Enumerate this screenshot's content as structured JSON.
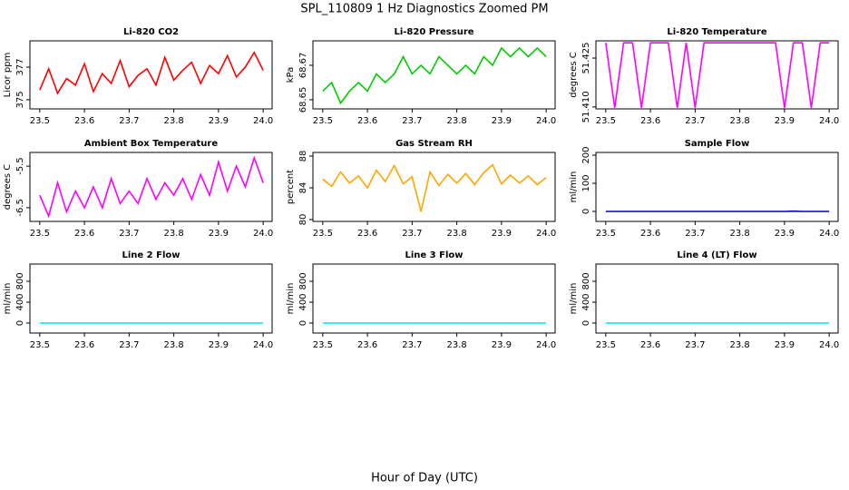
{
  "title": "SPL_110809  1 Hz Diagnostics Zoomed PM",
  "xlabel": "Hour of Day (UTC)",
  "chart_data": [
    {
      "type": "line",
      "title": "Li-820 CO2",
      "ylabel": "Licor ppm",
      "color": "#ff0000",
      "x": [
        23.5,
        23.52,
        23.54,
        23.56,
        23.58,
        23.6,
        23.62,
        23.64,
        23.66,
        23.68,
        23.7,
        23.72,
        23.74,
        23.76,
        23.78,
        23.8,
        23.82,
        23.84,
        23.86,
        23.88,
        23.9,
        23.92,
        23.94,
        23.96,
        23.98,
        24.0
      ],
      "values": [
        375.6,
        376.9,
        375.4,
        376.3,
        375.9,
        377.2,
        375.5,
        376.6,
        376.0,
        377.4,
        375.8,
        376.5,
        376.9,
        375.9,
        377.6,
        376.2,
        376.8,
        377.3,
        376.0,
        377.1,
        376.6,
        377.7,
        376.4,
        377.0,
        377.9,
        376.8
      ],
      "xlim": [
        23.478,
        24.02
      ],
      "xticks": [
        23.5,
        23.6,
        23.7,
        23.8,
        23.9,
        {
          "value": 24,
          "label": "24.0"
        }
      ],
      "ylim": [
        374.44,
        378.61
      ],
      "yticks": [
        375,
        377
      ]
    },
    {
      "type": "line",
      "title": "Li-820 Pressure",
      "ylabel": "kPa",
      "color": "#00cc00",
      "x": [
        23.5,
        23.52,
        23.54,
        23.56,
        23.58,
        23.6,
        23.62,
        23.64,
        23.66,
        23.68,
        23.7,
        23.72,
        23.74,
        23.76,
        23.78,
        23.8,
        23.82,
        23.84,
        23.86,
        23.88,
        23.9,
        23.92,
        23.94,
        23.96,
        23.98,
        24.0
      ],
      "values": [
        68.655,
        68.66,
        68.648,
        68.655,
        68.66,
        68.655,
        68.665,
        68.66,
        68.665,
        68.675,
        68.665,
        68.67,
        68.665,
        68.675,
        68.67,
        68.665,
        68.67,
        68.665,
        68.675,
        68.67,
        68.68,
        68.675,
        68.68,
        68.675,
        68.68,
        68.675
      ],
      "xlim": [
        23.478,
        24.02
      ],
      "xticks": [
        23.5,
        23.6,
        23.7,
        23.8,
        23.9,
        {
          "value": 24,
          "label": "24.0"
        }
      ],
      "ylim": [
        68.6447,
        68.6842
      ],
      "yticks": [
        68.65,
        68.67
      ]
    },
    {
      "type": "line",
      "title": "Li-820 Temperature",
      "ylabel": "degrees C",
      "color": "#ff00ff",
      "x": [
        23.5,
        23.52,
        23.54,
        23.56,
        23.58,
        23.6,
        23.62,
        23.64,
        23.66,
        23.68,
        23.7,
        23.72,
        23.74,
        23.76,
        23.78,
        23.8,
        23.82,
        23.84,
        23.86,
        23.88,
        23.9,
        23.92,
        23.94,
        23.96,
        23.98,
        24.0
      ],
      "values": [
        51.4297,
        51.4097,
        51.4297,
        51.4297,
        51.4097,
        51.4297,
        51.4297,
        51.4297,
        51.4097,
        51.4297,
        51.4097,
        51.4297,
        51.4297,
        51.4297,
        51.4297,
        51.4297,
        51.4297,
        51.4297,
        51.4297,
        51.4297,
        51.4097,
        51.4297,
        51.4297,
        51.4097,
        51.4297,
        51.4297
      ],
      "xlim": [
        23.478,
        24.02
      ],
      "xticks": [
        23.5,
        23.6,
        23.7,
        23.8,
        23.9,
        {
          "value": 24,
          "label": "24.0"
        }
      ],
      "ylim": [
        51.4094,
        51.4303
      ],
      "yticks": [
        {
          "value": 51.41,
          "label": "51.410"
        },
        51.425
      ]
    },
    {
      "type": "line",
      "title": "Ambient Box Temperature",
      "ylabel": "degrees C",
      "color": "#ff00ff",
      "x": [
        23.5,
        23.52,
        23.54,
        23.56,
        23.58,
        23.6,
        23.62,
        23.64,
        23.66,
        23.68,
        23.7,
        23.72,
        23.74,
        23.76,
        23.78,
        23.8,
        23.82,
        23.84,
        23.86,
        23.88,
        23.9,
        23.92,
        23.94,
        23.96,
        23.98,
        24.0
      ],
      "values": [
        -6.2,
        -6.7,
        -5.9,
        -6.6,
        -6.1,
        -6.5,
        -6.0,
        -6.5,
        -5.8,
        -6.4,
        -6.1,
        -6.4,
        -5.8,
        -6.3,
        -5.9,
        -6.2,
        -5.8,
        -6.3,
        -5.7,
        -6.2,
        -5.4,
        -6.1,
        -5.5,
        -6.0,
        -5.3,
        -5.9
      ],
      "xlim": [
        23.478,
        24.02
      ],
      "xticks": [
        23.5,
        23.6,
        23.7,
        23.8,
        23.9,
        {
          "value": 24,
          "label": "24.0"
        }
      ],
      "ylim": [
        -6.83,
        -5.17
      ],
      "yticks": [
        -6.5,
        -5.5
      ]
    },
    {
      "type": "line",
      "title": "Gas Stream RH",
      "ylabel": "percent",
      "color": "#ffa500",
      "x": [
        23.5,
        23.52,
        23.54,
        23.56,
        23.58,
        23.6,
        23.62,
        23.64,
        23.66,
        23.68,
        23.7,
        23.72,
        23.74,
        23.76,
        23.78,
        23.8,
        23.82,
        23.84,
        23.86,
        23.88,
        23.9,
        23.92,
        23.94,
        23.96,
        23.98,
        24.0
      ],
      "values": [
        85.1,
        84.2,
        86.0,
        84.6,
        85.5,
        84.0,
        86.2,
        84.8,
        86.8,
        84.5,
        85.4,
        81.0,
        86.0,
        84.3,
        85.7,
        84.6,
        85.8,
        84.4,
        85.9,
        86.9,
        84.5,
        85.6,
        84.6,
        85.5,
        84.4,
        85.3
      ],
      "xlim": [
        23.478,
        24.02
      ],
      "xticks": [
        23.5,
        23.6,
        23.7,
        23.8,
        23.9,
        {
          "value": 24,
          "label": "24.0"
        }
      ],
      "ylim": [
        79.77,
        88.46
      ],
      "yticks": [
        80,
        84,
        88
      ]
    },
    {
      "type": "line",
      "title": "Sample Flow",
      "ylabel": "ml/min",
      "color": "#0000cc",
      "x": [
        23.5,
        23.52,
        23.54,
        23.56,
        23.58,
        23.6,
        23.62,
        23.64,
        23.66,
        23.68,
        23.7,
        23.72,
        23.74,
        23.76,
        23.78,
        23.8,
        23.82,
        23.84,
        23.86,
        23.88,
        23.9,
        23.92,
        23.94,
        23.96,
        23.98,
        24.0
      ],
      "values": [
        0,
        0,
        0,
        0,
        0,
        0,
        0,
        0,
        0,
        0,
        0,
        0,
        0,
        0,
        0,
        0,
        0,
        0,
        0,
        0,
        0,
        1,
        0,
        0,
        0,
        0
      ],
      "xlim": [
        23.478,
        24.02
      ],
      "xticks": [
        23.5,
        23.6,
        23.7,
        23.8,
        23.9,
        {
          "value": 24,
          "label": "24.0"
        }
      ],
      "ylim": [
        -35.5,
        209.7
      ],
      "yticks": [
        0,
        100,
        200
      ]
    },
    {
      "type": "line",
      "title": "Line 2 Flow",
      "ylabel": "ml/min",
      "color": "#00e5ee",
      "x": [
        23.5,
        24.0
      ],
      "values": [
        0,
        0
      ],
      "xlim": [
        23.478,
        24.02
      ],
      "xticks": [
        23.5,
        23.6,
        23.7,
        23.8,
        23.9,
        {
          "value": 24,
          "label": "24.0"
        }
      ],
      "ylim": [
        -191,
        1130
      ],
      "yticks": [
        0,
        400,
        800
      ]
    },
    {
      "type": "line",
      "title": "Line 3 Flow",
      "ylabel": "ml/min",
      "color": "#00e5ee",
      "x": [
        23.5,
        24.0
      ],
      "values": [
        0,
        0
      ],
      "xlim": [
        23.478,
        24.02
      ],
      "xticks": [
        23.5,
        23.6,
        23.7,
        23.8,
        23.9,
        {
          "value": 24,
          "label": "24.0"
        }
      ],
      "ylim": [
        -191,
        1130
      ],
      "yticks": [
        0,
        400,
        800
      ]
    },
    {
      "type": "line",
      "title": "Line 4 (LT) Flow",
      "ylabel": "ml/min",
      "color": "#00e5ee",
      "x": [
        23.5,
        24.0
      ],
      "values": [
        0,
        0
      ],
      "xlim": [
        23.478,
        24.02
      ],
      "xticks": [
        23.5,
        23.6,
        23.7,
        23.8,
        23.9,
        {
          "value": 24,
          "label": "24.0"
        }
      ],
      "ylim": [
        -191,
        1130
      ],
      "yticks": [
        0,
        400,
        800
      ]
    }
  ]
}
